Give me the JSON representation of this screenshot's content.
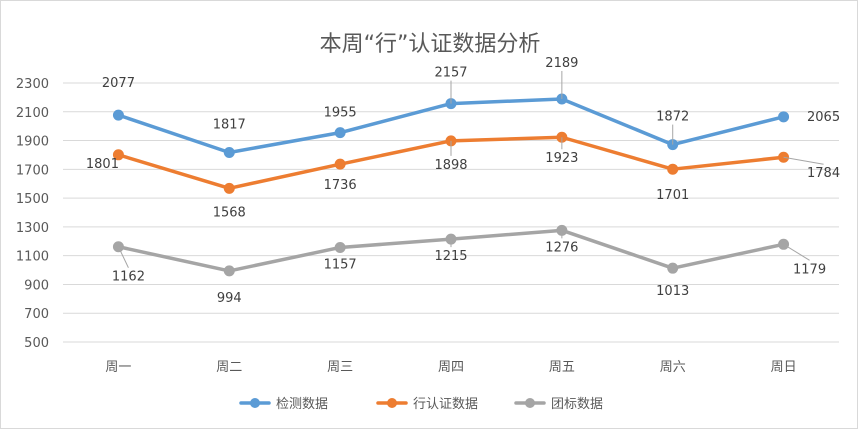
{
  "chart_data": {
    "type": "line",
    "title": "本周“行”认证数据分析",
    "categories": [
      "周一",
      "周二",
      "周三",
      "周四",
      "周五",
      "周六",
      "周日"
    ],
    "series": [
      {
        "name": "检测数据",
        "color": "#5B9BD5",
        "values": [
          2077,
          1817,
          1955,
          2157,
          2189,
          1872,
          2065
        ]
      },
      {
        "name": "行认证数据",
        "color": "#ED7D31",
        "values": [
          1801,
          1568,
          1736,
          1898,
          1923,
          1701,
          1784
        ]
      },
      {
        "name": "团标数据",
        "color": "#A5A5A5",
        "values": [
          1162,
          994,
          1157,
          1215,
          1276,
          1013,
          1179
        ]
      }
    ],
    "ylim": [
      500,
      2300
    ],
    "yticks": [
      500,
      700,
      900,
      1100,
      1300,
      1500,
      1700,
      1900,
      2100,
      2300
    ],
    "grid": true,
    "legend": "bottom",
    "xlabel": "",
    "ylabel": ""
  }
}
